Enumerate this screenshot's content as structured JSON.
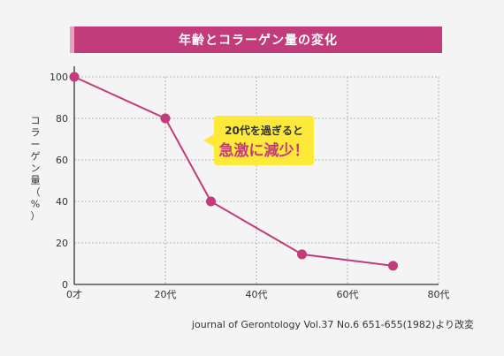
{
  "chart_data": {
    "type": "line",
    "title": "年齢とコラーゲン量の変化",
    "ylabel": "コラーゲン量（%）",
    "xlabel": "",
    "x": [
      0,
      20,
      30,
      50,
      70
    ],
    "y": [
      100,
      80,
      40,
      14.5,
      9
    ],
    "xlim": [
      0,
      80
    ],
    "ylim": [
      0,
      100
    ],
    "x_ticks": [
      0,
      20,
      40,
      60,
      80
    ],
    "x_tick_labels": [
      "0才",
      "20代",
      "40代",
      "60代",
      "80代"
    ],
    "y_ticks": [
      0,
      20,
      40,
      60,
      80,
      100
    ],
    "y_tick_labels": [
      "0",
      "20",
      "40",
      "60",
      "80",
      "100"
    ],
    "grid": true,
    "line_color": "#c23b7a",
    "annotation": {
      "line1": "20代を過ぎると",
      "line2": "急激に減少！",
      "background": "#fde93a"
    },
    "source": "journal of Gerontology Vol.37 No.6 651-655(1982)より改変"
  }
}
